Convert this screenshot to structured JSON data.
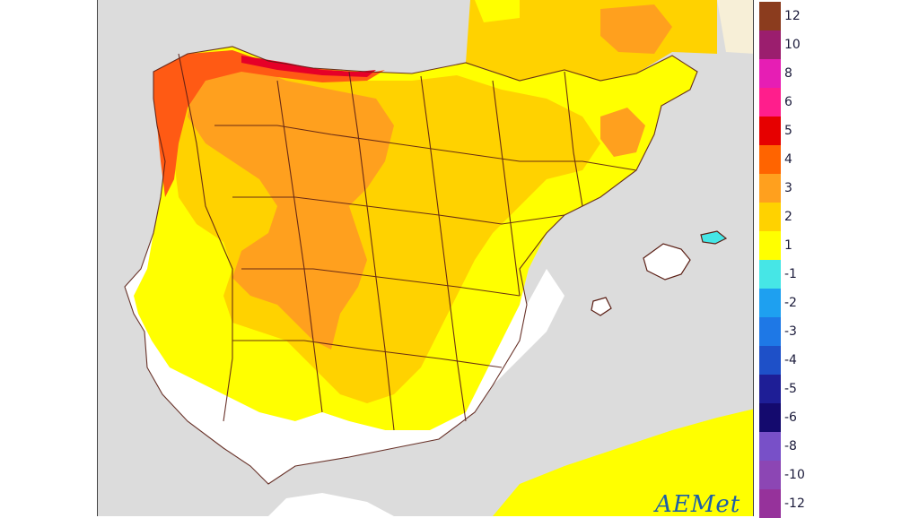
{
  "map": {
    "colors": {
      "sea": "#dcdcdc",
      "land_white": "#ffffff",
      "level_1": "#ffff00",
      "level_2": "#ffd200",
      "level_3": "#ffa01e",
      "level_4": "#ff5a14",
      "level_5": "#e60028",
      "border": "#5a1e14"
    }
  },
  "legend": {
    "items": [
      {
        "label": "12",
        "color": "#8b3c1e"
      },
      {
        "label": "10",
        "color": "#9b1e6e"
      },
      {
        "label": "8",
        "color": "#e61eb4"
      },
      {
        "label": "6",
        "color": "#ff1e8c"
      },
      {
        "label": "5",
        "color": "#e60000"
      },
      {
        "label": "4",
        "color": "#ff6400"
      },
      {
        "label": "3",
        "color": "#ffa01e"
      },
      {
        "label": "2",
        "color": "#ffd200"
      },
      {
        "label": "1",
        "color": "#ffff00"
      },
      {
        "label": "-1",
        "color": "#46e6e6"
      },
      {
        "label": "-2",
        "color": "#1ea0f0"
      },
      {
        "label": "-3",
        "color": "#1e78e6"
      },
      {
        "label": "-4",
        "color": "#1e50c8"
      },
      {
        "label": "-5",
        "color": "#1e1e96"
      },
      {
        "label": "-6",
        "color": "#140a6e"
      },
      {
        "label": "-8",
        "color": "#7850c8"
      },
      {
        "label": "-10",
        "color": "#8c46b4"
      },
      {
        "label": "-12",
        "color": "#96329b"
      }
    ]
  },
  "logo": {
    "text": "AEMet",
    "icon": "aemet-logo"
  }
}
